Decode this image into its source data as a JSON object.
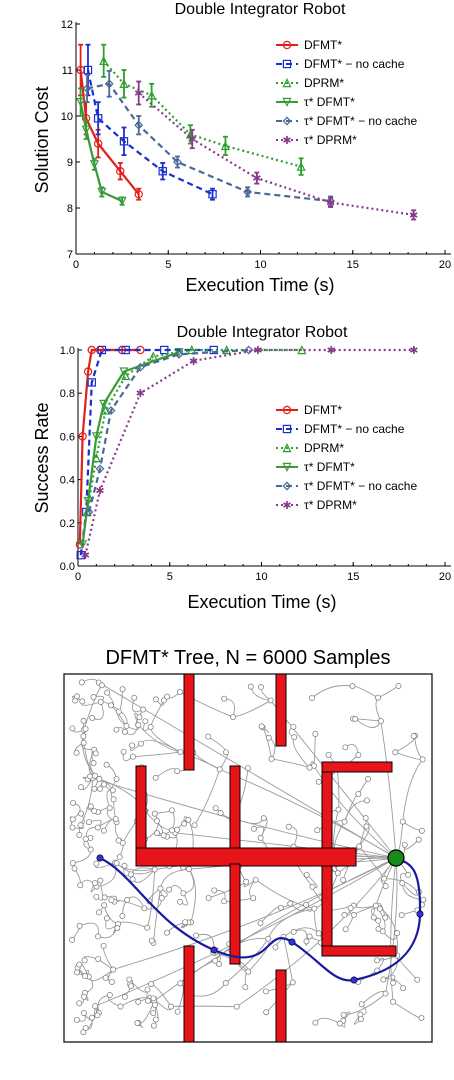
{
  "chart_data": [
    {
      "type": "line",
      "title": "Double Integrator Robot",
      "xlabel": "Execution Time (s)",
      "ylabel": "Solution Cost",
      "xlim": [
        0,
        20
      ],
      "ylim": [
        7,
        12
      ],
      "xticks": [
        "0",
        "5",
        "10",
        "15",
        "20"
      ],
      "yticks": [
        "7",
        "8",
        "9",
        "10",
        "11",
        "12"
      ],
      "legend_position": "top-right",
      "series": [
        {
          "name": "DFMT*",
          "color": "#e0201b",
          "marker": "circle",
          "dash": "solid",
          "x": [
            0.25,
            0.55,
            1.2,
            2.4,
            3.4
          ],
          "y": [
            11.0,
            9.95,
            9.4,
            8.8,
            8.3
          ],
          "err": [
            0.55,
            0.35,
            0.3,
            0.18,
            0.12
          ]
        },
        {
          "name": "DFMT* − no cache",
          "color": "#1a2fd0",
          "marker": "square",
          "dash": "dashed",
          "x": [
            0.65,
            1.2,
            2.6,
            4.7,
            7.4
          ],
          "y": [
            11.0,
            9.95,
            9.45,
            8.8,
            8.3
          ],
          "err": [
            0.55,
            0.35,
            0.3,
            0.18,
            0.12
          ]
        },
        {
          "name": "DPRM*",
          "color": "#2ca02c",
          "marker": "triangle",
          "dash": "dotted",
          "x": [
            1.5,
            2.6,
            4.1,
            6.2,
            8.1,
            12.2
          ],
          "y": [
            11.2,
            10.7,
            10.45,
            9.6,
            9.35,
            8.9
          ],
          "err": [
            0.35,
            0.3,
            0.25,
            0.2,
            0.2,
            0.18
          ]
        },
        {
          "name": "τ* DFMT*",
          "color": "#3a9a38",
          "marker": "tri-down",
          "dash": "solid",
          "x": [
            0.25,
            0.55,
            1.0,
            1.4,
            2.5
          ],
          "y": [
            10.3,
            9.7,
            8.95,
            8.35,
            8.15
          ],
          "err": [
            0.3,
            0.2,
            0.12,
            0.1,
            0.08
          ]
        },
        {
          "name": "τ* DFMT* − no cache",
          "color": "#4a6898",
          "marker": "diamond",
          "dash": "dashed",
          "x": [
            0.6,
            1.8,
            3.4,
            5.5,
            9.3,
            13.8
          ],
          "y": [
            10.6,
            10.7,
            9.8,
            9.0,
            8.35,
            8.15
          ],
          "err": [
            0.3,
            0.28,
            0.2,
            0.12,
            0.1,
            0.1
          ]
        },
        {
          "name": "τ* DPRM*",
          "color": "#8a3a8c",
          "marker": "star",
          "dash": "dotted",
          "x": [
            3.4,
            6.3,
            9.8,
            13.8,
            18.3
          ],
          "y": [
            10.5,
            9.5,
            8.65,
            8.12,
            7.85
          ],
          "err": [
            0.25,
            0.2,
            0.12,
            0.1,
            0.1
          ]
        }
      ]
    },
    {
      "type": "line",
      "title": "Double Integrator Robot",
      "xlabel": "Execution Time (s)",
      "ylabel": "Success Rate",
      "xlim": [
        0,
        20
      ],
      "ylim": [
        0,
        1
      ],
      "xticks": [
        "0",
        "5",
        "10",
        "15",
        "20"
      ],
      "yticks": [
        "0.0",
        "0.2",
        "0.4",
        "0.6",
        "0.8",
        "1.0"
      ],
      "legend_position": "center-right",
      "series": [
        {
          "name": "DFMT*",
          "color": "#e0201b",
          "marker": "circle",
          "dash": "solid",
          "x": [
            0.1,
            0.25,
            0.55,
            0.75,
            1.2,
            2.4,
            3.4
          ],
          "y": [
            0.1,
            0.6,
            0.9,
            1.0,
            1.0,
            1.0,
            1.0
          ]
        },
        {
          "name": "DFMT* − no cache",
          "color": "#1a2fd0",
          "marker": "square",
          "dash": "dashed",
          "x": [
            0.15,
            0.45,
            0.75,
            1.3,
            2.6,
            4.7,
            7.4
          ],
          "y": [
            0.05,
            0.25,
            0.85,
            1.0,
            1.0,
            1.0,
            1.0
          ]
        },
        {
          "name": "DPRM*",
          "color": "#2ca02c",
          "marker": "triangle",
          "dash": "dotted",
          "x": [
            0.5,
            1.0,
            1.5,
            2.6,
            4.1,
            6.2,
            8.1,
            12.2
          ],
          "y": [
            0.25,
            0.5,
            0.72,
            0.88,
            0.97,
            1.0,
            1.0,
            1.0
          ]
        },
        {
          "name": "τ* DFMT*",
          "color": "#3a9a38",
          "marker": "tri-down",
          "dash": "solid",
          "x": [
            0.25,
            0.55,
            1.0,
            1.4,
            2.5,
            5.5
          ],
          "y": [
            0.1,
            0.3,
            0.6,
            0.75,
            0.9,
            0.99
          ]
        },
        {
          "name": "τ* DFMT* − no cache",
          "color": "#4a6898",
          "marker": "diamond",
          "dash": "dashed",
          "x": [
            0.6,
            1.2,
            1.8,
            3.4,
            5.5,
            9.3
          ],
          "y": [
            0.25,
            0.45,
            0.72,
            0.92,
            0.98,
            1.0
          ]
        },
        {
          "name": "τ* DPRM*",
          "color": "#8a3a8c",
          "marker": "star",
          "dash": "dotted",
          "x": [
            0.4,
            1.2,
            3.4,
            6.3,
            9.8,
            13.8,
            18.3
          ],
          "y": [
            0.05,
            0.35,
            0.8,
            0.95,
            1.0,
            1.0,
            1.0
          ]
        }
      ]
    }
  ],
  "tree_figure": {
    "title": "DFMT* Tree, N = 6000 Samples",
    "colors": {
      "tree": "#9b9b9b",
      "obstacle": "#e8141a",
      "path": "#1a1aa0",
      "goal": "#1a8a1a"
    }
  }
}
